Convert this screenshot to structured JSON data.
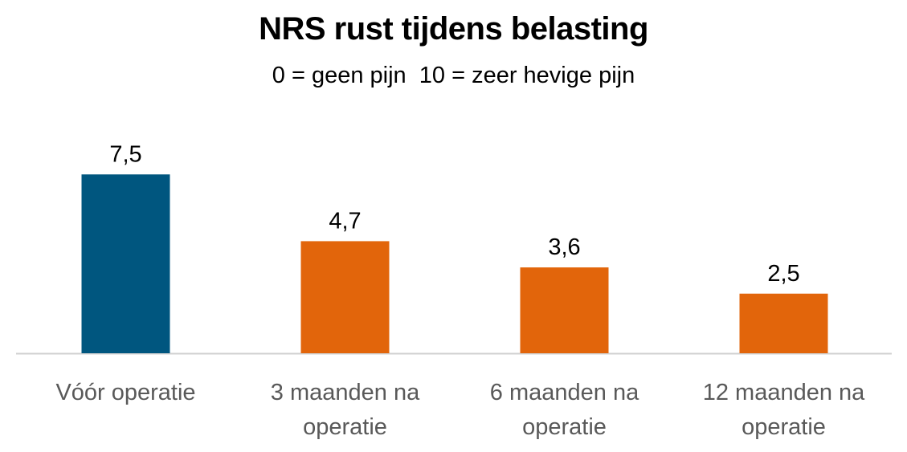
{
  "chart_data": {
    "type": "bar",
    "title": "NRS rust tijdens belasting",
    "subtitle": "0 = geen pijn  10 = zeer hevige pijn",
    "categories": [
      [
        "Vóór operatie"
      ],
      [
        "3 maanden na",
        "operatie"
      ],
      [
        "6 maanden na",
        "operatie"
      ],
      [
        "12 maanden na",
        "operatie"
      ]
    ],
    "values": [
      7.5,
      4.7,
      3.6,
      2.5
    ],
    "value_labels": [
      "7,5",
      "4,7",
      "3,6",
      "2,5"
    ],
    "bar_colors": [
      "#00567f",
      "#e2650b",
      "#e2650b",
      "#e2650b"
    ],
    "xlabel": "",
    "ylabel": "",
    "ylim": [
      0,
      10
    ],
    "grid": false,
    "legend": "none",
    "colors": {
      "axis": "#d0d0d0",
      "category_text": "#595959",
      "value_text": "#000000"
    }
  }
}
